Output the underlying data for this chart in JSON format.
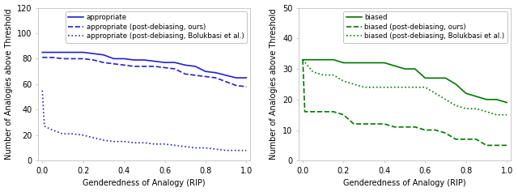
{
  "left": {
    "ylabel": "Number of Analogies above Threshold",
    "xlabel": "Genderedness of Analogy (RIP)",
    "ylim": [
      0,
      120
    ],
    "yticks": [
      0,
      20,
      40,
      60,
      80,
      100,
      120
    ],
    "xlim": [
      -0.02,
      1.02
    ],
    "line1_label": "appropriate",
    "line2_label": "appropriate (post-debiasing, ours)",
    "line3_label": "appropriate (post-debiasing, Bolukbasi et al.)",
    "line1_x": [
      0.0,
      0.05,
      0.1,
      0.15,
      0.2,
      0.25,
      0.3,
      0.35,
      0.4,
      0.45,
      0.5,
      0.55,
      0.6,
      0.65,
      0.7,
      0.75,
      0.8,
      0.85,
      0.9,
      0.95,
      1.0
    ],
    "line1_y": [
      85,
      85,
      85,
      85,
      85,
      84,
      83,
      80,
      80,
      79,
      79,
      78,
      77,
      77,
      75,
      74,
      70,
      69,
      67,
      65,
      65
    ],
    "line2_x": [
      0.0,
      0.05,
      0.1,
      0.15,
      0.2,
      0.25,
      0.3,
      0.35,
      0.4,
      0.45,
      0.5,
      0.55,
      0.6,
      0.65,
      0.7,
      0.75,
      0.8,
      0.85,
      0.9,
      0.95,
      1.0
    ],
    "line2_y": [
      81,
      81,
      80,
      80,
      80,
      79,
      77,
      76,
      75,
      74,
      74,
      74,
      73,
      72,
      68,
      67,
      66,
      65,
      62,
      59,
      58
    ],
    "line3_x": [
      0.0,
      0.01,
      0.05,
      0.1,
      0.15,
      0.2,
      0.25,
      0.3,
      0.35,
      0.4,
      0.45,
      0.5,
      0.55,
      0.6,
      0.65,
      0.7,
      0.75,
      0.8,
      0.85,
      0.9,
      0.95,
      1.0
    ],
    "line3_y": [
      55,
      27,
      24,
      21,
      21,
      20,
      18,
      16,
      15,
      15,
      14,
      14,
      13,
      13,
      12,
      11,
      10,
      10,
      9,
      8,
      8,
      8
    ],
    "line1_color": "#2222cc",
    "line2_color": "#2222cc",
    "line3_color": "#2222cc"
  },
  "right": {
    "ylabel": "Number of Analogies above Threshold",
    "xlabel": "Genderedness of Analogy (RIP)",
    "ylim": [
      0,
      50
    ],
    "yticks": [
      0,
      10,
      20,
      30,
      40,
      50
    ],
    "xlim": [
      -0.02,
      1.02
    ],
    "line1_label": "biased",
    "line2_label": "biased (post-debiasing, ours)",
    "line3_label": "biased (post-debiasing, Bolukbasi et al.)",
    "line1_x": [
      0.0,
      0.05,
      0.1,
      0.15,
      0.2,
      0.25,
      0.3,
      0.35,
      0.4,
      0.45,
      0.5,
      0.55,
      0.6,
      0.65,
      0.7,
      0.75,
      0.8,
      0.85,
      0.9,
      0.95,
      1.0
    ],
    "line1_y": [
      33,
      33,
      33,
      33,
      32,
      32,
      32,
      32,
      32,
      31,
      30,
      30,
      27,
      27,
      27,
      25,
      22,
      21,
      20,
      20,
      19
    ],
    "line2_x": [
      0.0,
      0.01,
      0.05,
      0.1,
      0.15,
      0.2,
      0.25,
      0.3,
      0.35,
      0.4,
      0.45,
      0.5,
      0.55,
      0.6,
      0.65,
      0.7,
      0.75,
      0.8,
      0.85,
      0.9,
      0.95,
      1.0
    ],
    "line2_y": [
      33,
      16,
      16,
      16,
      16,
      15,
      12,
      12,
      12,
      12,
      11,
      11,
      11,
      10,
      10,
      9,
      7,
      7,
      7,
      5,
      5,
      5
    ],
    "line3_x": [
      0.0,
      0.05,
      0.1,
      0.15,
      0.2,
      0.25,
      0.3,
      0.35,
      0.4,
      0.45,
      0.5,
      0.55,
      0.6,
      0.65,
      0.7,
      0.75,
      0.8,
      0.85,
      0.9,
      0.95,
      1.0
    ],
    "line3_y": [
      33,
      29,
      28,
      28,
      26,
      25,
      24,
      24,
      24,
      24,
      24,
      24,
      24,
      22,
      20,
      18,
      17,
      17,
      16,
      15,
      15
    ],
    "line1_color": "#007700",
    "line2_color": "#007700",
    "line3_color": "#007700"
  },
  "bg_color": "#ffffff",
  "font_size": 7.0,
  "legend_font_size": 6.2,
  "tick_font_size": 7.0,
  "linewidth": 1.2
}
